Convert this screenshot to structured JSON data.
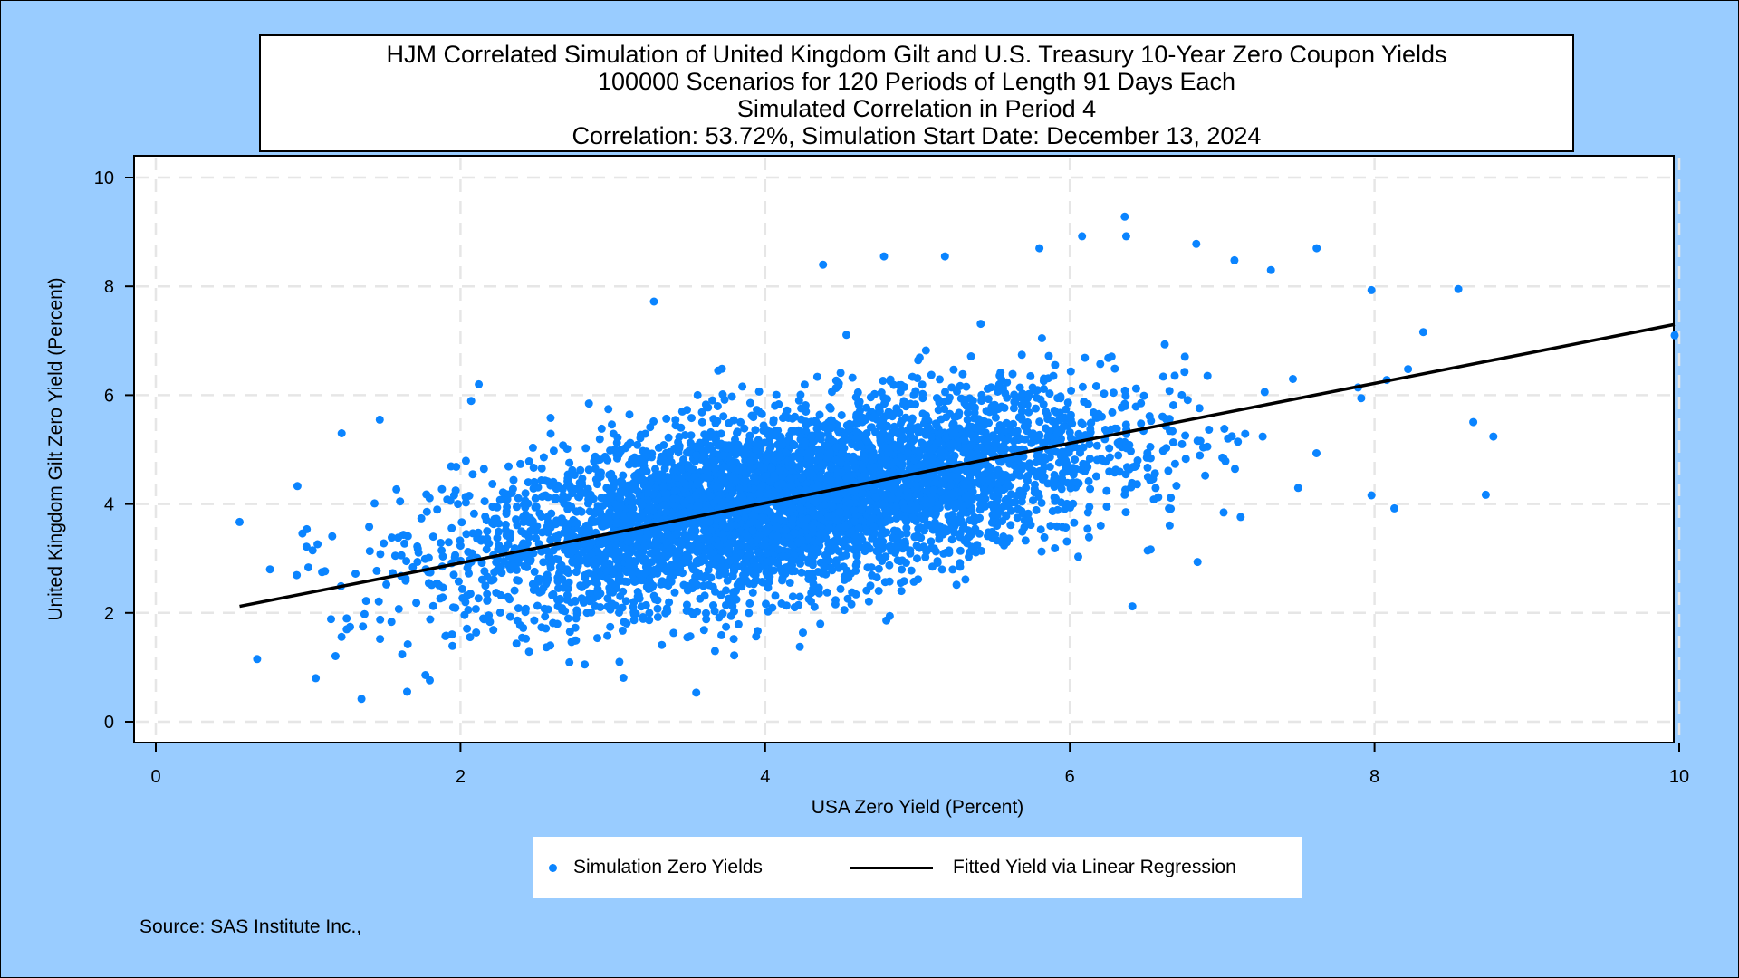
{
  "title_lines": [
    "HJM Correlated Simulation of United Kingdom Gilt and U.S. Treasury 10-Year Zero Coupon Yields",
    "100000 Scenarios for 120 Periods of Length 91 Days Each",
    "Simulated Correlation in Period 4",
    "Correlation: 53.72%,  Simulation Start Date:  December 13, 2024"
  ],
  "legend": {
    "scatter_label": "Simulation Zero Yields",
    "line_label": "Fitted Yield via Linear Regression"
  },
  "source": "Source: SAS Institute Inc.,",
  "colors": {
    "background": "#99CCFF",
    "scatter": "#0A84FF",
    "fit_line": "#000000",
    "grid": "#E6E6E6"
  },
  "chart_data": {
    "type": "scatter",
    "xlabel": "USA Zero Yield (Percent)",
    "ylabel": "United Kingdom Gilt Zero Yield (Percent)",
    "xlim": [
      0,
      10
    ],
    "ylim": [
      0,
      10
    ],
    "xticks": [
      "0",
      "2",
      "4",
      "6",
      "8",
      "10"
    ],
    "yticks": [
      "0",
      "2",
      "4",
      "6",
      "8",
      "10"
    ],
    "grid": true,
    "legend_placement": "bottom-center",
    "correlation": 0.5372,
    "scenarios": 100000,
    "series": [
      {
        "name": "Simulation Zero Yields",
        "kind": "scatter",
        "center": [
          4.15,
          4.05
        ],
        "sd": [
          1.05,
          0.95
        ],
        "outliers": [
          [
            0.55,
            3.67
          ],
          [
            0.75,
            2.8
          ],
          [
            0.93,
            4.33
          ],
          [
            1.22,
            5.3
          ],
          [
            1.47,
            5.55
          ],
          [
            1.35,
            0.42
          ],
          [
            1.05,
            0.8
          ],
          [
            1.65,
            0.55
          ],
          [
            2.12,
            6.2
          ],
          [
            3.27,
            7.72
          ],
          [
            4.38,
            8.4
          ],
          [
            4.78,
            8.55
          ],
          [
            5.18,
            8.55
          ],
          [
            5.8,
            8.7
          ],
          [
            6.08,
            8.92
          ],
          [
            6.36,
            9.28
          ],
          [
            6.37,
            8.92
          ],
          [
            6.83,
            8.78
          ],
          [
            7.08,
            8.48
          ],
          [
            7.32,
            8.3
          ],
          [
            7.62,
            8.7
          ],
          [
            8.55,
            7.95
          ],
          [
            9.97,
            7.1
          ],
          [
            7.98,
            7.93
          ],
          [
            8.32,
            7.16
          ],
          [
            8.78,
            5.24
          ],
          [
            8.73,
            4.17
          ],
          [
            8.13,
            3.92
          ],
          [
            7.98,
            4.16
          ],
          [
            6.41,
            2.12
          ],
          [
            8.22,
            6.48
          ],
          [
            8.08,
            6.28
          ]
        ]
      },
      {
        "name": "Fitted Yield via Linear Regression",
        "kind": "line",
        "points": [
          [
            0.55,
            2.12
          ],
          [
            9.97,
            7.3
          ]
        ]
      }
    ]
  }
}
